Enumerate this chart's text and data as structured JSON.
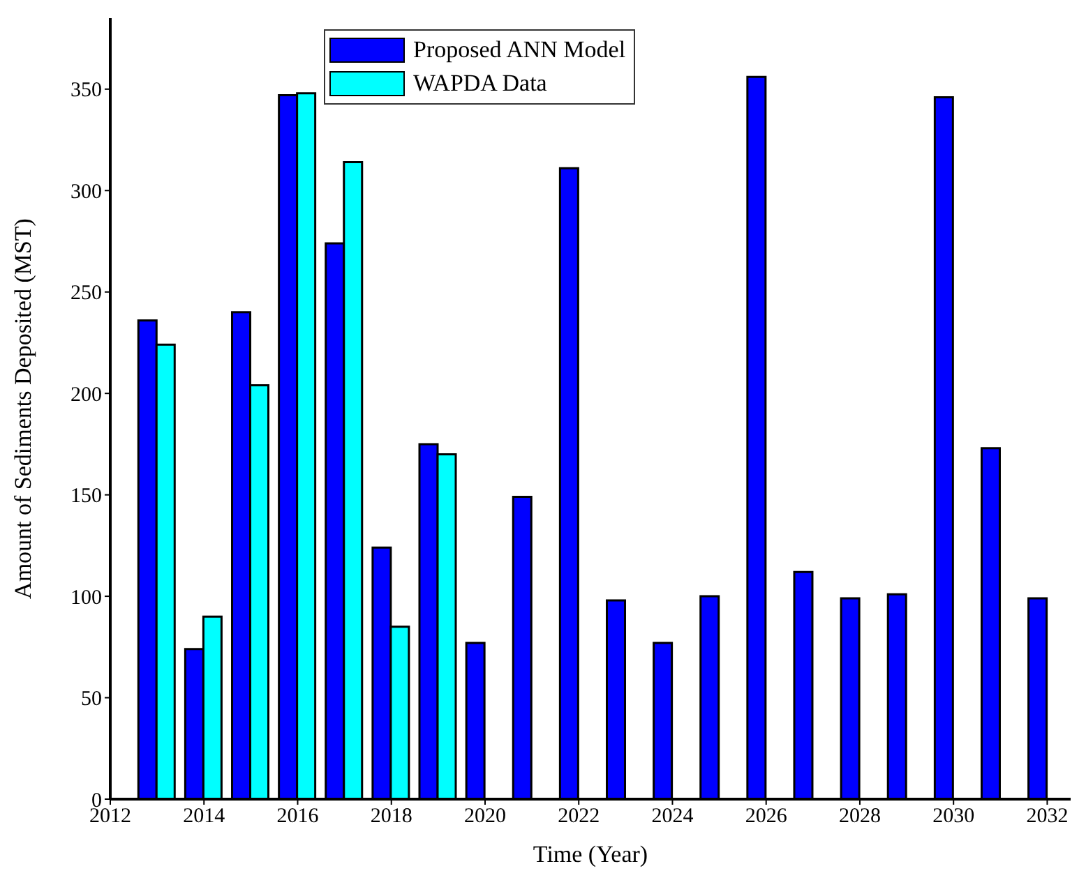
{
  "chart_data": {
    "type": "bar",
    "xlabel": "Time (Year)",
    "ylabel": "Amount of Sediments Deposited (MST)",
    "x": [
      2013,
      2014,
      2015,
      2016,
      2017,
      2018,
      2019,
      2020,
      2021,
      2022,
      2023,
      2024,
      2025,
      2026,
      2027,
      2028,
      2029,
      2030,
      2031,
      2032
    ],
    "series": [
      {
        "name": "Proposed ANN Model",
        "color": "#0000ff",
        "values": [
          236,
          74,
          240,
          347,
          274,
          124,
          175,
          77,
          149,
          311,
          98,
          77,
          100,
          356,
          112,
          99,
          101,
          346,
          173,
          99
        ]
      },
      {
        "name": "WAPDA Data",
        "color": "#00ffff",
        "values": [
          224,
          90,
          204,
          348,
          314,
          85,
          170,
          null,
          null,
          null,
          null,
          null,
          null,
          null,
          null,
          null,
          null,
          null,
          null,
          null
        ]
      }
    ],
    "xlim": [
      2012,
      2032.5
    ],
    "xticks": [
      2012,
      2014,
      2016,
      2018,
      2020,
      2022,
      2024,
      2026,
      2028,
      2030,
      2032
    ],
    "ylim": [
      0,
      385
    ],
    "yticks": [
      0,
      50,
      100,
      150,
      200,
      250,
      300,
      350
    ],
    "grid": false,
    "legend": "top"
  }
}
